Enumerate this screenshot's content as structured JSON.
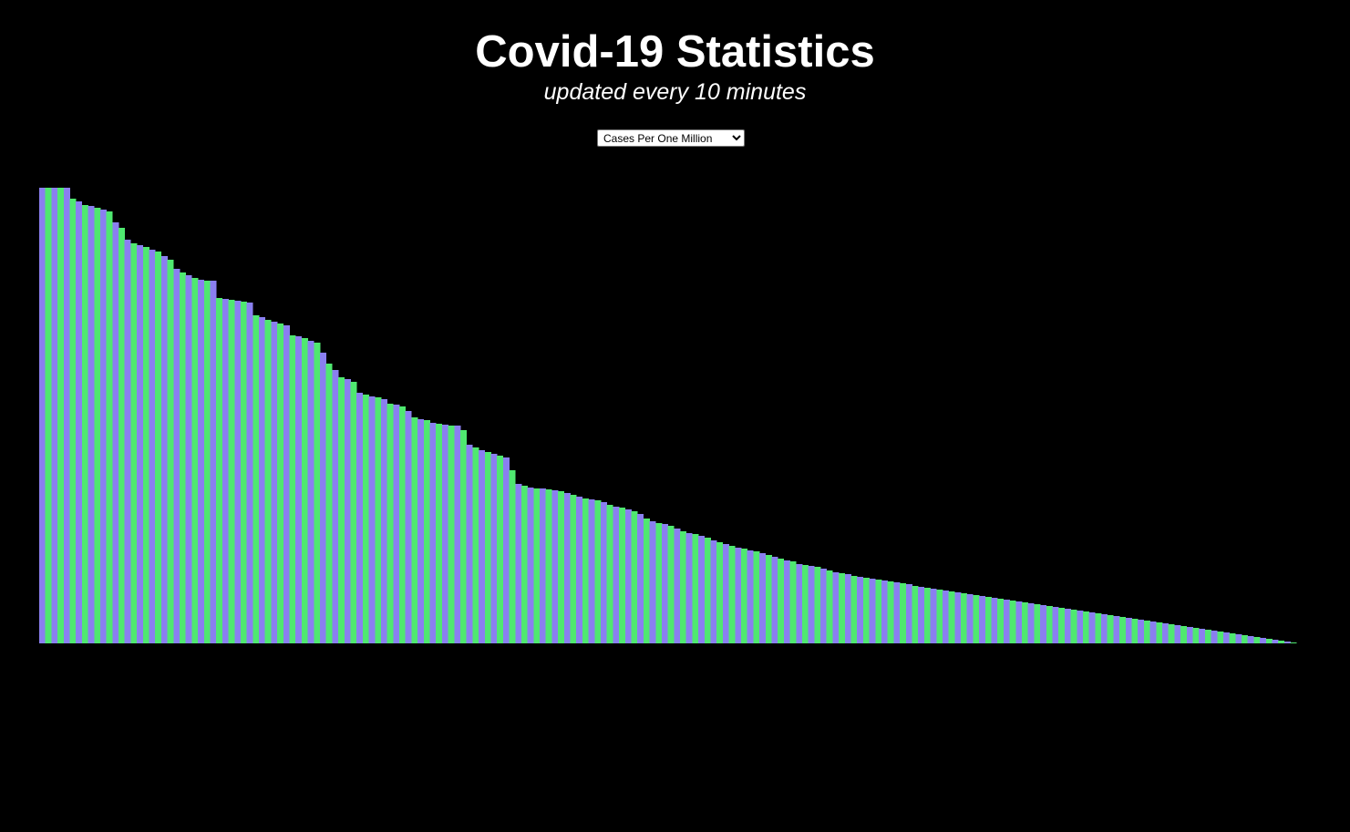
{
  "page": {
    "title": "Covid-19 Statistics",
    "subtitle": "updated every 10 minutes"
  },
  "metric_select": {
    "selected": "Cases Per One Million",
    "options": [
      "Cases Per One Million"
    ]
  },
  "colors": {
    "background": "#000000",
    "bar_a": "#8a7ff0",
    "bar_b": "#4fe870"
  },
  "chart_data": {
    "type": "bar",
    "title": "",
    "xlabel": "",
    "ylabel": "",
    "ylim": [
      0,
      100
    ],
    "grid": false,
    "legend": "none",
    "values": [
      100.0,
      100.0,
      100.0,
      100.0,
      100.0,
      97.6,
      97.0,
      96.2,
      96.0,
      95.6,
      95.2,
      94.8,
      92.4,
      91.2,
      88.6,
      87.8,
      87.4,
      87.0,
      86.4,
      86.0,
      85.0,
      84.2,
      82.2,
      81.4,
      80.8,
      80.2,
      79.8,
      79.6,
      79.6,
      75.8,
      75.6,
      75.4,
      75.2,
      75.0,
      74.8,
      72.0,
      71.6,
      71.0,
      70.6,
      70.2,
      69.8,
      67.6,
      67.4,
      67.0,
      66.4,
      66.0,
      63.8,
      61.4,
      60.0,
      58.4,
      58.0,
      57.4,
      55.0,
      54.6,
      54.2,
      54.0,
      53.6,
      52.6,
      52.4,
      52.0,
      51.0,
      49.6,
      49.2,
      49.0,
      48.4,
      48.2,
      48.0,
      47.8,
      47.8,
      46.8,
      43.6,
      43.0,
      42.4,
      42.0,
      41.6,
      41.2,
      40.8,
      38.0,
      35.0,
      34.6,
      34.2,
      34.0,
      34.0,
      33.8,
      33.6,
      33.4,
      33.0,
      32.6,
      32.2,
      31.8,
      31.6,
      31.4,
      31.0,
      30.4,
      30.0,
      29.8,
      29.4,
      29.0,
      28.4,
      27.4,
      26.8,
      26.4,
      26.2,
      25.8,
      25.2,
      24.6,
      24.2,
      24.0,
      23.6,
      23.2,
      22.6,
      22.2,
      21.8,
      21.4,
      21.0,
      20.8,
      20.4,
      20.2,
      19.8,
      19.4,
      19.0,
      18.6,
      18.2,
      18.0,
      17.4,
      17.2,
      17.0,
      16.8,
      16.4,
      16.0,
      15.6,
      15.4,
      15.2,
      14.8,
      14.6,
      14.4,
      14.2,
      14.0,
      13.8,
      13.6,
      13.4,
      13.2,
      13.0,
      12.6,
      12.4,
      12.2,
      12.0,
      11.8,
      11.6,
      11.4,
      11.2,
      11.0,
      10.8,
      10.6,
      10.4,
      10.2,
      10.0,
      9.8,
      9.6,
      9.4,
      9.2,
      9.0,
      8.8,
      8.6,
      8.4,
      8.2,
      8.0,
      7.8,
      7.6,
      7.4,
      7.2,
      7.0,
      6.8,
      6.6,
      6.4,
      6.2,
      6.0,
      5.8,
      5.6,
      5.4,
      5.2,
      5.0,
      4.8,
      4.6,
      4.4,
      4.2,
      4.0,
      3.8,
      3.6,
      3.4,
      3.2,
      3.0,
      2.8,
      2.6,
      2.4,
      2.2,
      2.0,
      1.8,
      1.6,
      1.4,
      1.2,
      1.0,
      0.8,
      0.6,
      0.4,
      0.2,
      0.0
    ]
  }
}
